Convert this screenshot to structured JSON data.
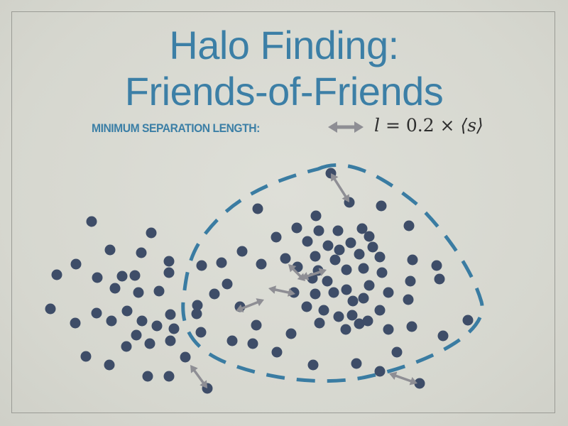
{
  "slide": {
    "title_line_1": "Halo Finding:",
    "title_line_2": "Friends-of-Friends",
    "label": "MINIMUM SEPARATION LENGTH:",
    "formula": {
      "lhs": "l",
      "equals": " = ",
      "coefficient": "0.2",
      "times": " × ",
      "rhs": "⟨s⟩"
    }
  },
  "colors": {
    "title": "#3c7fa6",
    "particle": "#3e4d68",
    "halo_boundary": "#3a7ca2",
    "link_arrow": "#8e8e94",
    "background": "#d9d9d2"
  },
  "icons": {
    "legend": "double-arrow-icon"
  }
}
